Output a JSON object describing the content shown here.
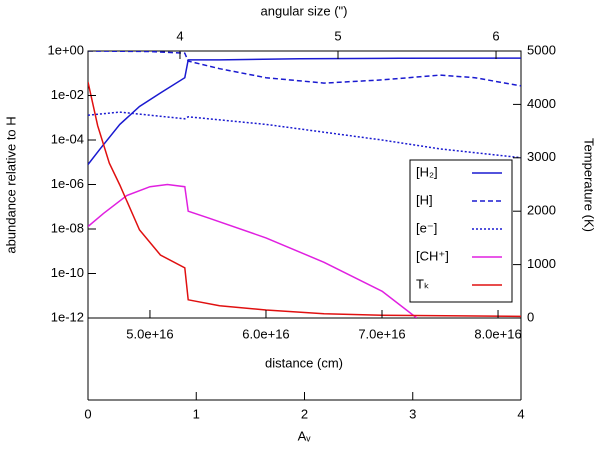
{
  "chart_data": {
    "type": "line",
    "xlabel": "distance  (cm)",
    "ylabel": "abundance relative to H",
    "y2label": "Temperature  (K)",
    "xlim": [
      4.466e+16,
      8.198e+16
    ],
    "xticks": [
      {
        "value": 5e+16,
        "label": "5.0e+16"
      },
      {
        "value": 6e+16,
        "label": "6.0e+16"
      },
      {
        "value": 7e+16,
        "label": "7.0e+16"
      },
      {
        "value": 8e+16,
        "label": "8.0e+16"
      }
    ],
    "ylim": [
      1e-12,
      1
    ],
    "log_y": true,
    "yticks": [
      {
        "value": 1,
        "label": "1e+00"
      },
      {
        "value": 0.01,
        "label": "1e-02"
      },
      {
        "value": 0.0001,
        "label": "1e-04"
      },
      {
        "value": 1e-06,
        "label": "1e-06"
      },
      {
        "value": 1e-08,
        "label": "1e-08"
      },
      {
        "value": 1e-10,
        "label": "1e-10"
      },
      {
        "value": 1e-12,
        "label": "1e-12"
      }
    ],
    "y2lim": [
      0,
      5000
    ],
    "y2ticks": [
      0,
      1000,
      2000,
      3000,
      4000,
      5000
    ],
    "top_axis": {
      "label": "angular size  (\")",
      "lim": [
        3.418,
        6.158
      ],
      "ticks": [
        4,
        5,
        6
      ]
    },
    "av_axis": {
      "label": "Aᵥ",
      "lim": [
        0,
        4
      ],
      "ticks": [
        0,
        1,
        2,
        3,
        4
      ]
    },
    "series": [
      {
        "name": "[H₂]",
        "color": "#1a1ad0",
        "dash": "solid",
        "x": [
          4.466e+16,
          4.57e+16,
          4.74e+16,
          4.91e+16,
          5.09e+16,
          5.3e+16,
          5.33e+16,
          5.6e+16,
          6.29e+16,
          7.15e+16,
          8.198e+16
        ],
        "values": [
          7.9e-06,
          4e-05,
          0.0005,
          0.0032,
          0.013,
          0.063,
          0.4,
          0.4,
          0.45,
          0.47,
          0.48
        ]
      },
      {
        "name": "[H]",
        "color": "#1a1ad0",
        "dash": "dashed",
        "x": [
          4.466e+16,
          5e+16,
          5.3e+16,
          5.33e+16,
          5.6e+16,
          6e+16,
          6.5e+16,
          7e+16,
          7.5e+16,
          7.8e+16,
          8.198e+16
        ],
        "values": [
          1,
          0.95,
          0.8,
          0.35,
          0.16,
          0.063,
          0.036,
          0.05,
          0.083,
          0.063,
          0.027
        ]
      },
      {
        "name": "[e⁻]",
        "color": "#1a1ad0",
        "dash": "dotted",
        "x": [
          4.466e+16,
          4.74e+16,
          5e+16,
          5.3e+16,
          5.33e+16,
          6e+16,
          7e+16,
          7.5e+16,
          8.198e+16
        ],
        "values": [
          0.0013,
          0.0018,
          0.0013,
          0.0009,
          0.0011,
          0.0005,
          0.0001,
          4e-05,
          1.6e-05
        ]
      },
      {
        "name": "[CH⁺]",
        "color": "#e020e0",
        "dash": "solid",
        "x": [
          4.466e+16,
          4.6e+16,
          4.8e+16,
          5e+16,
          5.15e+16,
          5.3e+16,
          5.33e+16,
          5.5e+16,
          6e+16,
          6.5e+16,
          7e+16,
          7.3e+16
        ],
        "values": [
          1.3e-08,
          5e-08,
          3.2e-07,
          8e-07,
          1e-06,
          8e-07,
          6.3e-08,
          3.2e-08,
          4e-09,
          3.2e-10,
          1.6e-11,
          1e-12
        ]
      },
      {
        "name": "Tₖ",
        "color": "#e01010",
        "dash": "solid",
        "axis": "y2",
        "x": [
          4.466e+16,
          4.55e+16,
          4.65e+16,
          4.74e+16,
          4.91e+16,
          5.09e+16,
          5.3e+16,
          5.33e+16,
          5.6e+16,
          6e+16,
          6.5e+16,
          7e+16,
          8.198e+16
        ],
        "values": [
          4420,
          3600,
          2900,
          2490,
          1650,
          1180,
          940,
          340,
          230,
          150,
          80,
          50,
          30
        ]
      }
    ]
  }
}
